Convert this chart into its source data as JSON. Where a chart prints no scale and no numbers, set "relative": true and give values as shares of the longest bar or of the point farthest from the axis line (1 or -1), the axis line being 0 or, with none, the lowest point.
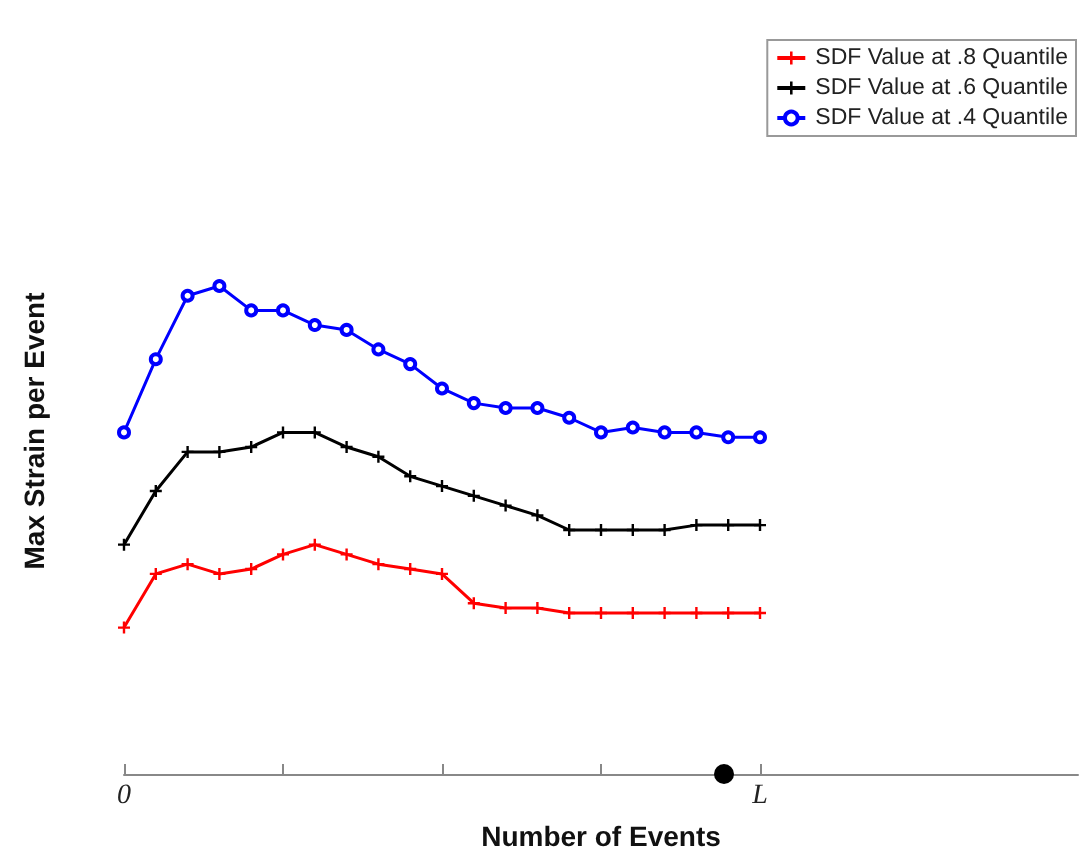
{
  "chart_data": {
    "type": "line",
    "relative": true,
    "xlabel": "Number of Events",
    "ylabel": "Max Strain per Event",
    "legend": "top right",
    "grid": false,
    "categories": [
      "0",
      null,
      null,
      null,
      null,
      null,
      null,
      null,
      null,
      null,
      null,
      null,
      null,
      null,
      null,
      null,
      null,
      null,
      null,
      null,
      "L",
      null,
      null,
      null,
      null,
      null,
      null,
      null,
      null,
      null,
      null
    ],
    "series": [
      {
        "name": "SDF Value at .8 Quantile",
        "color": "#ff0000",
        "marker": "cross",
        "values": [
          0.3,
          0.41,
          0.43,
          0.41,
          0.42,
          0.45,
          0.47,
          0.45,
          0.43,
          0.42,
          0.41,
          0.35,
          0.34,
          0.34,
          0.33,
          0.33,
          0.33,
          0.33,
          0.33,
          0.33,
          0.33,
          null,
          null,
          null,
          null,
          null,
          null,
          null,
          null,
          null,
          null
        ]
      },
      {
        "name": "SDF Value at .6 Quantile",
        "color": "#000000",
        "marker": "cross",
        "values": [
          0.47,
          0.58,
          0.66,
          0.66,
          0.67,
          0.7,
          0.7,
          0.67,
          0.65,
          0.61,
          0.59,
          0.57,
          0.55,
          0.53,
          0.5,
          0.5,
          0.5,
          0.5,
          0.51,
          0.51,
          0.51,
          null,
          null,
          null,
          null,
          null,
          null,
          null,
          null,
          null,
          null
        ]
      },
      {
        "name": "SDF Value at .4 Quantile",
        "color": "#0000ff",
        "marker": "circle",
        "values": [
          0.7,
          0.85,
          0.98,
          1.0,
          0.95,
          0.95,
          0.92,
          0.91,
          0.87,
          0.84,
          0.79,
          0.76,
          0.75,
          0.75,
          0.73,
          0.7,
          0.71,
          0.7,
          0.7,
          0.69,
          0.69,
          null,
          null,
          null,
          null,
          null,
          null,
          null,
          null,
          null,
          null
        ]
      }
    ]
  }
}
